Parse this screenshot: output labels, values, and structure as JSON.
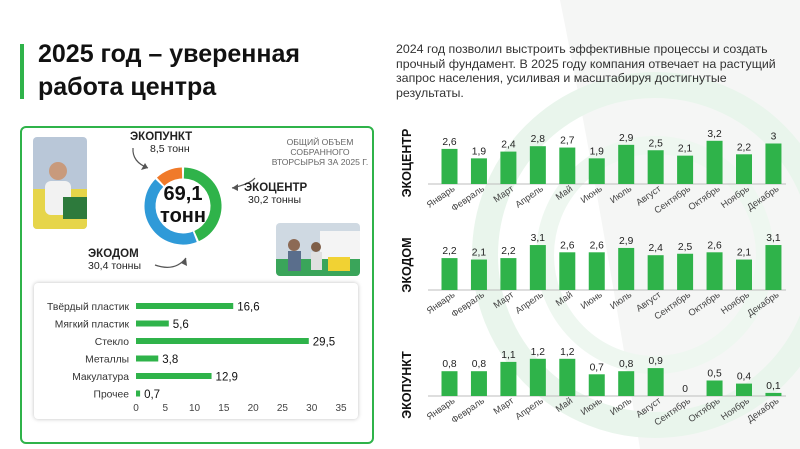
{
  "title": "2025 год – уверенная работа центра",
  "intro": "2024 год позволил выстроить эффективные процессы и создать прочный фундамент. В 2025 году компания отвечает на растущий запрос населения, усиливая и масштабируя достигнутые результаты.",
  "donut": {
    "total_value": "69,1",
    "total_unit": "тонн",
    "note": "ОБЩИЙ ОБЪЕМ СОБРАННОГО ВТОРСЫРЬЯ ЗА 2025 Г.",
    "labels": [
      {
        "name": "ЭКОПУНКТ",
        "value": "8,5 тонн"
      },
      {
        "name": "ЭКОЦЕНТР",
        "value": "30,2 тонны"
      },
      {
        "name": "ЭКОДОМ",
        "value": "30,4 тонны"
      }
    ]
  },
  "colors": {
    "green": "#2fb34a",
    "blue": "#2f9ad8",
    "orange": "#f07a2a",
    "light_green": "#e3f3e6"
  },
  "chart_data": [
    {
      "type": "pie",
      "categories": [
        "ЭКОЦЕНТР",
        "ЭКОДОМ",
        "ЭКОПУНКТ"
      ],
      "values": [
        30.2,
        30.4,
        8.5
      ],
      "colors": [
        "#2fb34a",
        "#2f9ad8",
        "#f07a2a"
      ]
    },
    {
      "type": "bar",
      "orientation": "horizontal",
      "categories": [
        "Твёрдый пластик",
        "Мягкий пластик",
        "Стекло",
        "Металлы",
        "Макулатура",
        "Прочее"
      ],
      "values": [
        16.6,
        5.6,
        29.5,
        3.8,
        12.9,
        0.7
      ],
      "value_labels": [
        "16,6",
        "5,6",
        "29,5",
        "3,8",
        "12,9",
        "0,7"
      ],
      "xlim": [
        0,
        35
      ],
      "xticks": [
        "0",
        "5",
        "10",
        "15",
        "20",
        "25",
        "30",
        "35"
      ]
    },
    {
      "type": "bar",
      "ylabel": "ЭКОЦЕНТР",
      "categories": [
        "Январь",
        "Февраль",
        "Март",
        "Апрель",
        "Май",
        "Июнь",
        "Июль",
        "Август",
        "Сентябрь",
        "Октябрь",
        "Ноябрь",
        "Декабрь"
      ],
      "values": [
        2.6,
        1.9,
        2.4,
        2.8,
        2.7,
        1.9,
        2.9,
        2.5,
        2.1,
        3.2,
        2.2,
        3.0
      ],
      "value_labels": [
        "2,6",
        "1,9",
        "2,4",
        "2,8",
        "2,7",
        "1,9",
        "2,9",
        "2,5",
        "2,1",
        "3,2",
        "2,2",
        "3"
      ]
    },
    {
      "type": "bar",
      "ylabel": "ЭКОДОМ",
      "categories": [
        "Январь",
        "Февраль",
        "Март",
        "Апрель",
        "Май",
        "Июнь",
        "Июль",
        "Август",
        "Сентябрь",
        "Октябрь",
        "Ноябрь",
        "Декабрь"
      ],
      "values": [
        2.2,
        2.1,
        2.2,
        3.1,
        2.6,
        2.6,
        2.9,
        2.4,
        2.5,
        2.6,
        2.1,
        3.1
      ],
      "value_labels": [
        "2,2",
        "2,1",
        "2,2",
        "3,1",
        "2,6",
        "2,6",
        "2,9",
        "2,4",
        "2,5",
        "2,6",
        "2,1",
        "3,1"
      ]
    },
    {
      "type": "bar",
      "ylabel": "ЭКОПУНКТ",
      "categories": [
        "Январь",
        "Февраль",
        "Март",
        "Апрель",
        "Май",
        "Июнь",
        "Июль",
        "Август",
        "Сентябрь",
        "Октябрь",
        "Ноябрь",
        "Декабрь"
      ],
      "values": [
        0.8,
        0.8,
        1.1,
        1.2,
        1.2,
        0.7,
        0.8,
        0.9,
        0.0,
        0.5,
        0.4,
        0.1
      ],
      "value_labels": [
        "0,8",
        "0,8",
        "1,1",
        "1,2",
        "1,2",
        "0,7",
        "0,8",
        "0,9",
        "0",
        "0,5",
        "0,4",
        "0,1"
      ]
    }
  ]
}
